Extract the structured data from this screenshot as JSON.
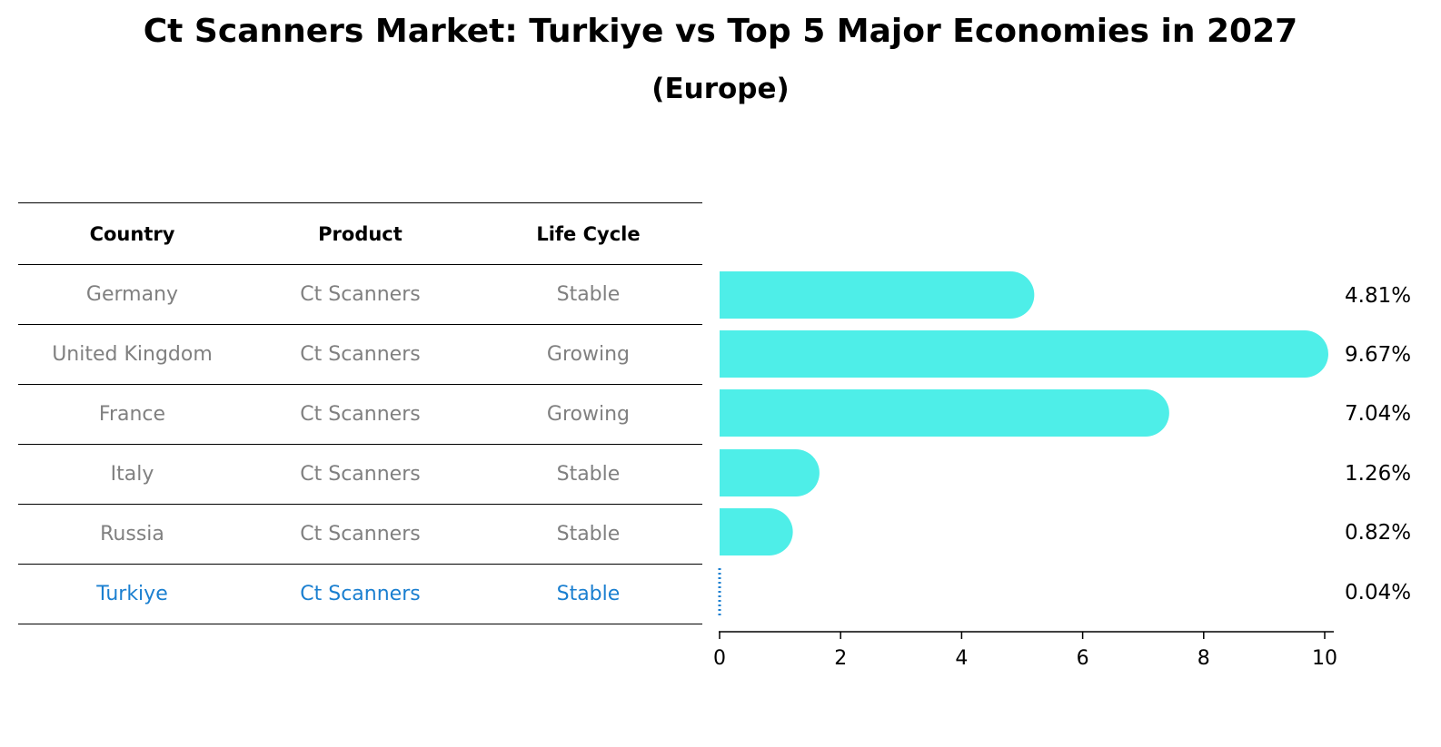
{
  "title": "Ct Scanners Market: Turkiye vs Top 5 Major Economies in 2027",
  "subtitle": "(Europe)",
  "table": {
    "headers": [
      "Country",
      "Product",
      "Life Cycle"
    ],
    "rows": [
      {
        "country": "Germany",
        "product": "Ct Scanners",
        "life_cycle": "Stable"
      },
      {
        "country": "United Kingdom",
        "product": "Ct Scanners",
        "life_cycle": "Growing"
      },
      {
        "country": "France",
        "product": "Ct Scanners",
        "life_cycle": "Growing"
      },
      {
        "country": "Italy",
        "product": "Ct Scanners",
        "life_cycle": "Stable"
      },
      {
        "country": "Russia",
        "product": "Ct Scanners",
        "life_cycle": "Stable"
      },
      {
        "country": "Turkiye",
        "product": "Ct Scanners",
        "life_cycle": "Stable"
      }
    ]
  },
  "chart_data": {
    "type": "bar",
    "orientation": "horizontal",
    "categories": [
      "Germany",
      "United Kingdom",
      "France",
      "Italy",
      "Russia",
      "Turkiye"
    ],
    "values": [
      4.81,
      9.67,
      7.04,
      1.26,
      0.82,
      0.04
    ],
    "value_labels": [
      "4.81%",
      "9.67%",
      "7.04%",
      "1.26%",
      "0.82%",
      "0.04%"
    ],
    "xlim": [
      0,
      10
    ],
    "xticks": [
      "0",
      "2",
      "4",
      "6",
      "8",
      "10"
    ],
    "grid": false,
    "bar_color": "#4eeee8",
    "highlight_color": "#1a7fd0",
    "highlight_category": "Turkiye"
  }
}
